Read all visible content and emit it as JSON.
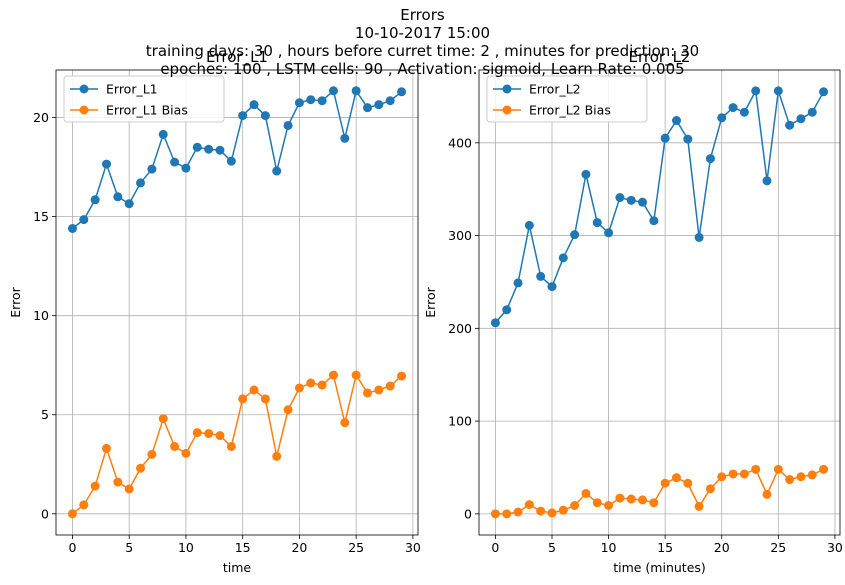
{
  "suptitle": {
    "line1": "Errors",
    "line2": "10-10-2017 15:00",
    "line3": "training days: 30 , hours before curret time: 2 , minutes for prediction: 30",
    "line4": "epoches: 100 , LSTM cells: 90 , Activation: sigmoid, Learn Rate: 0.005"
  },
  "chart_data": [
    {
      "type": "line",
      "title": "Error_L1",
      "xlabel": "time",
      "ylabel": "Error",
      "xlim": [
        -1.45,
        30.45
      ],
      "ylim": [
        -1.07,
        22.4
      ],
      "xticks": [
        0,
        5,
        10,
        15,
        20,
        25,
        30
      ],
      "yticks": [
        0,
        5,
        10,
        15,
        20
      ],
      "grid": true,
      "legend_position": "upper-left",
      "marker": "circle",
      "x": [
        0,
        1,
        2,
        3,
        4,
        5,
        6,
        7,
        8,
        9,
        10,
        11,
        12,
        13,
        14,
        15,
        16,
        17,
        18,
        19,
        20,
        21,
        22,
        23,
        24,
        25,
        26,
        27,
        28,
        29
      ],
      "series": [
        {
          "name": "Error_L1",
          "color": "#1f77b4",
          "values": [
            14.4,
            14.85,
            15.85,
            17.65,
            16.0,
            15.65,
            16.7,
            17.4,
            19.15,
            17.75,
            17.45,
            18.5,
            18.4,
            18.35,
            17.8,
            20.1,
            20.65,
            20.1,
            17.3,
            19.6,
            20.75,
            20.9,
            20.85,
            21.35,
            18.95,
            21.35,
            20.5,
            20.65,
            20.85,
            21.3
          ]
        },
        {
          "name": "Error_L1 Bias",
          "color": "#ff7f0e",
          "values": [
            0.0,
            0.45,
            1.4,
            3.3,
            1.6,
            1.25,
            2.3,
            3.0,
            4.8,
            3.4,
            3.05,
            4.1,
            4.05,
            3.95,
            3.4,
            5.8,
            6.25,
            5.8,
            2.9,
            5.25,
            6.35,
            6.6,
            6.5,
            7.0,
            4.6,
            7.0,
            6.1,
            6.25,
            6.45,
            6.95
          ]
        }
      ]
    },
    {
      "type": "line",
      "title": "Error_L2",
      "xlabel": "time (minutes)",
      "ylabel": "Error",
      "xlim": [
        -1.45,
        30.45
      ],
      "ylim": [
        -22.8,
        478.5
      ],
      "xticks": [
        0,
        5,
        10,
        15,
        20,
        25,
        30
      ],
      "yticks": [
        0,
        100,
        200,
        300,
        400
      ],
      "grid": true,
      "legend_position": "upper-left",
      "marker": "circle",
      "x": [
        0,
        1,
        2,
        3,
        4,
        5,
        6,
        7,
        8,
        9,
        10,
        11,
        12,
        13,
        14,
        15,
        16,
        17,
        18,
        19,
        20,
        21,
        22,
        23,
        24,
        25,
        26,
        27,
        28,
        29
      ],
      "series": [
        {
          "name": "Error_L2",
          "color": "#1f77b4",
          "values": [
            206,
            220,
            249,
            311,
            256,
            245,
            276,
            301,
            366,
            314,
            303,
            341,
            338,
            336,
            316,
            405,
            424,
            404,
            298,
            383,
            427,
            438,
            433,
            456,
            359,
            456,
            419,
            426,
            433,
            455
          ]
        },
        {
          "name": "Error_L2 Bias",
          "color": "#ff7f0e",
          "values": [
            0,
            0,
            2,
            10,
            3,
            1,
            4,
            9,
            22,
            12,
            9,
            17,
            16,
            15,
            12,
            33,
            39,
            33,
            8,
            27,
            40,
            43,
            43,
            48,
            21,
            48,
            37,
            40,
            42,
            48
          ]
        }
      ]
    }
  ]
}
